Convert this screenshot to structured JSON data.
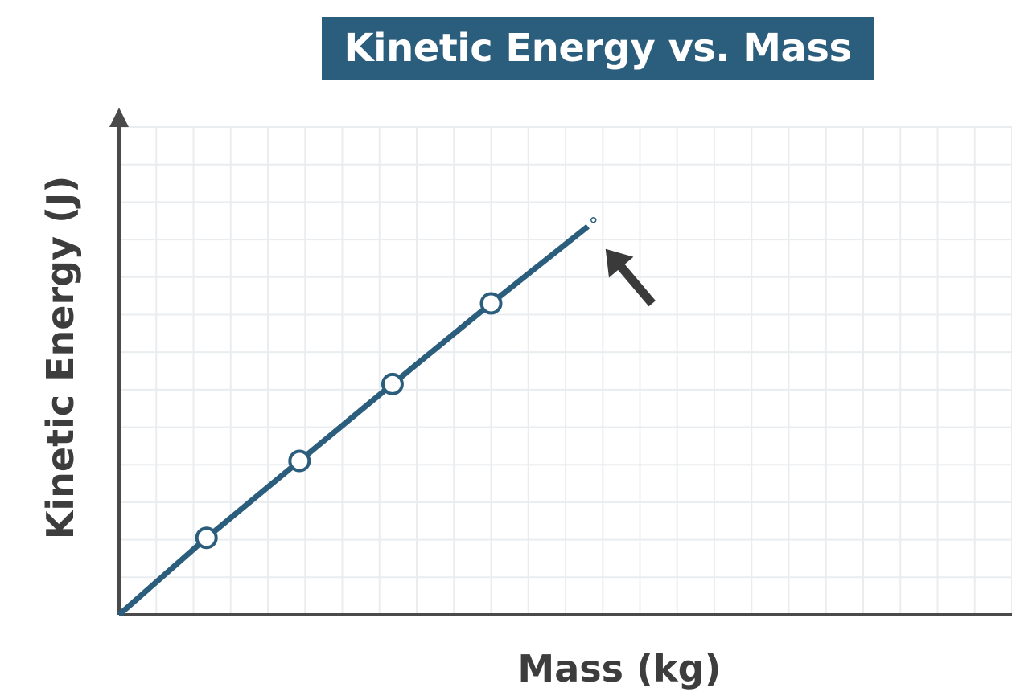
{
  "chart_data": {
    "type": "line",
    "title": "Kinetic Energy vs. Mass",
    "xlabel": "Mass (kg)",
    "ylabel": "Kinetic Energy (J)",
    "xlim": [
      0,
      24
    ],
    "ylim": [
      0,
      13
    ],
    "grid": true,
    "tick_labels": false,
    "series": [
      {
        "x": [
          0,
          2.35,
          4.85,
          7.35,
          10,
          12.6
        ],
        "y": [
          0,
          2.05,
          4.1,
          6.15,
          8.3,
          10.35
        ],
        "markers": [
          false,
          true,
          true,
          true,
          true,
          false
        ]
      }
    ],
    "annotations": [
      {
        "type": "arrow",
        "points_to": "line-end"
      }
    ],
    "colors": {
      "series": "#2b5d7c",
      "axis": "#4a4a4a",
      "grid": "#e9edf0",
      "arrow": "#3a3a3a"
    }
  }
}
